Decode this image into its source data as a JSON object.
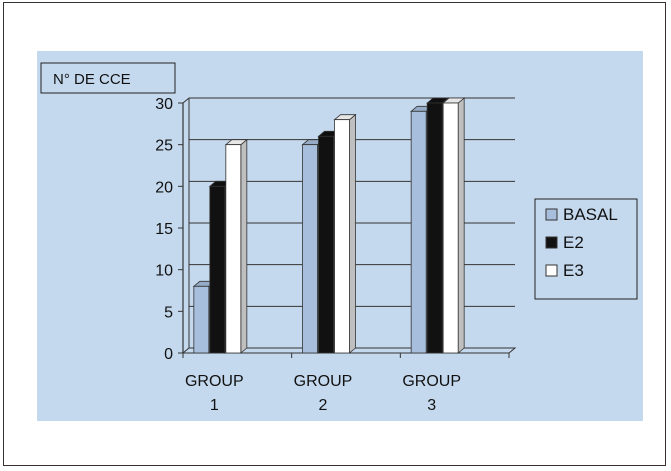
{
  "chart_data": {
    "type": "bar",
    "title": "",
    "ylabel": "N° DE CCE",
    "xlabel": "",
    "categories": [
      [
        "GROUP",
        "1"
      ],
      [
        "GROUP",
        "2"
      ],
      [
        "GROUP",
        "3"
      ]
    ],
    "series": [
      {
        "name": "BASAL",
        "values": [
          8,
          25,
          29
        ],
        "color": "#a7bfdc"
      },
      {
        "name": "E2",
        "values": [
          20,
          26,
          30
        ],
        "color": "#111111"
      },
      {
        "name": "E3",
        "values": [
          25,
          28,
          30
        ],
        "color": "#ffffff"
      }
    ],
    "ylim": [
      0,
      30
    ],
    "yticks": [
      0,
      5,
      10,
      15,
      20,
      25,
      30
    ],
    "grid": true,
    "legend_position": "right",
    "three_d": true,
    "colors": {
      "panel_background": "#c5d9ee",
      "gridline": "#333333",
      "axis": "#333333",
      "text": "#111111"
    }
  }
}
